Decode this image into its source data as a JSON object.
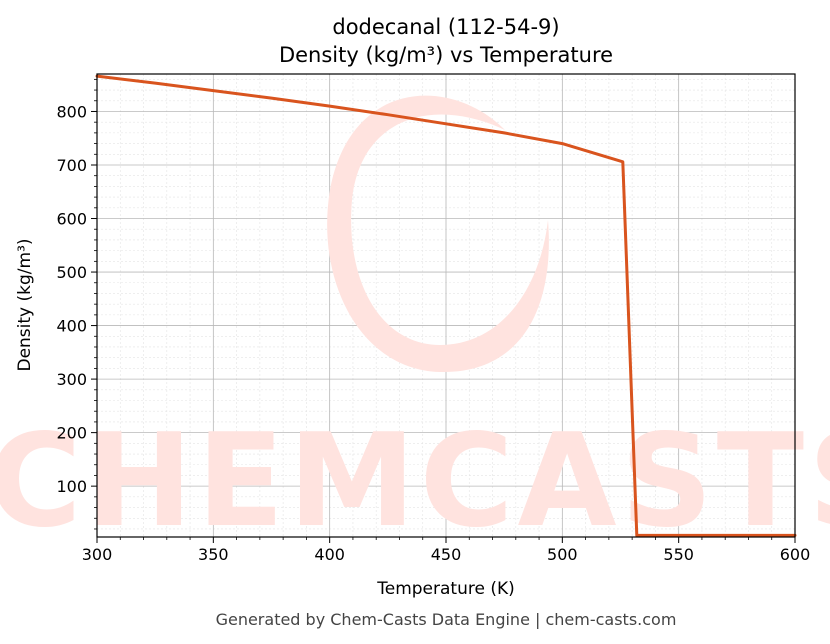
{
  "chart_data": {
    "type": "line",
    "title": "dodecanal (112-54-9)",
    "subtitle": "Density (kg/m³) vs Temperature",
    "xlabel": "Temperature (K)",
    "ylabel": "Density (kg/m³)",
    "xlim": [
      300,
      600
    ],
    "ylim": [
      5,
      870
    ],
    "xticks": [
      300,
      350,
      400,
      450,
      500,
      550,
      600
    ],
    "yticks": [
      100,
      200,
      300,
      400,
      500,
      600,
      700,
      800
    ],
    "grid": true,
    "line_color": "#d9541e",
    "series": [
      {
        "x": [
          300,
          325,
          350,
          375,
          400,
          425,
          450,
          475,
          500,
          526,
          532,
          550,
          575,
          600
        ],
        "y": [
          866,
          853,
          839,
          825,
          810,
          794,
          777,
          760,
          740,
          706,
          8,
          8,
          8,
          8
        ]
      }
    ]
  },
  "watermark": {
    "text": "CHEMCASTS",
    "color": "#ffe3df"
  },
  "footer": "Generated by Chem-Casts Data Engine | chem-casts.com"
}
